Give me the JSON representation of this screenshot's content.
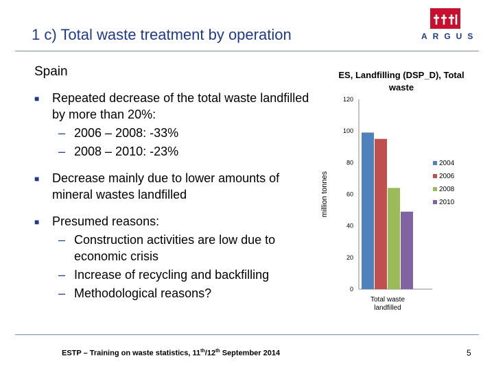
{
  "slide": {
    "title": "1 c) Total waste treatment by operation",
    "logo_name": "ARGUS",
    "section": "Spain",
    "bullets": [
      {
        "text": "Repeated decrease of the total waste landfilled by more than 20%:",
        "subs": [
          "2006 – 2008: -33%",
          "2008 – 2010: -23%"
        ]
      },
      {
        "text": "Decrease mainly due to lower amounts of mineral wastes landfilled",
        "subs": []
      },
      {
        "text": "Presumed reasons:",
        "subs": [
          "Construction activities are low due to economic crisis",
          "Increase of recycling and backfilling",
          "Methodological reasons?"
        ]
      }
    ],
    "footer": {
      "main": "ESTP – Training on waste statistics, 11",
      "sup1": "th",
      "slash": "/12",
      "sup2": "th",
      "tail": " September 2014"
    },
    "page_number": "5"
  },
  "icons": {
    "logo": "argus-logo-icon",
    "bullet": "square-bullet-icon"
  },
  "colors": {
    "title": "#1f3a8a",
    "series": [
      "#4f81bd",
      "#c0504d",
      "#9bbb59",
      "#8064a2"
    ]
  },
  "chart_data": {
    "type": "bar",
    "title": "ES, Landfilling (DSP_D), Total waste",
    "ylabel": "million tonnes",
    "categories": [
      "Total waste landfilled"
    ],
    "ylim": [
      0,
      120
    ],
    "yticks": [
      "120",
      "100",
      "80",
      "60",
      "40",
      "20",
      "0"
    ],
    "legend_position": "right",
    "series": [
      {
        "name": "2004",
        "values": [
          99
        ]
      },
      {
        "name": "2006",
        "values": [
          95
        ]
      },
      {
        "name": "2008",
        "values": [
          64
        ]
      },
      {
        "name": "2010",
        "values": [
          49
        ]
      }
    ]
  }
}
